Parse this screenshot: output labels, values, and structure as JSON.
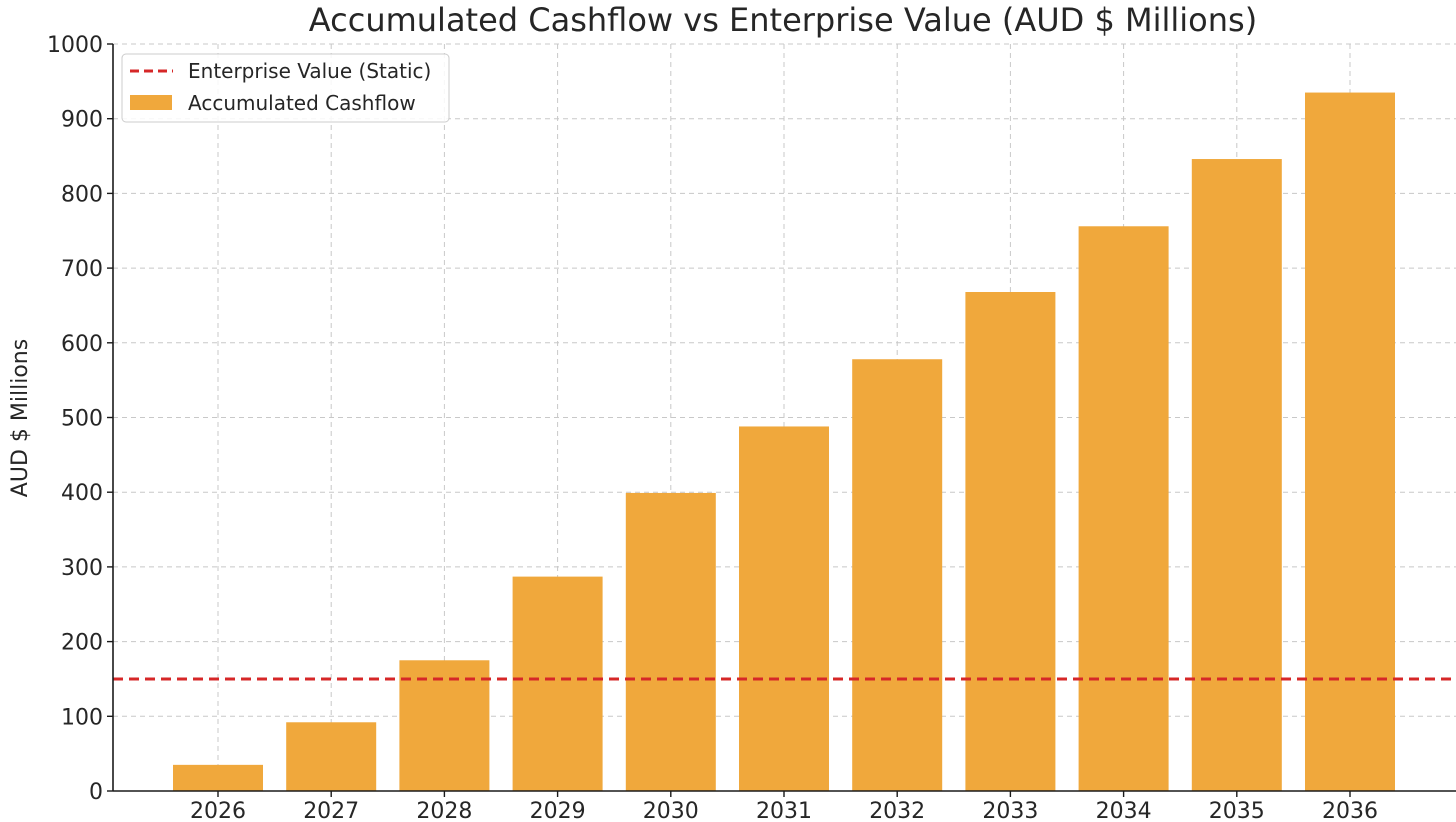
{
  "chart_data": {
    "type": "bar",
    "title": "Accumulated Cashflow vs Enterprise Value (AUD $ Millions)",
    "xlabel": "",
    "ylabel": "AUD $ Millions",
    "categories": [
      "2026",
      "2027",
      "2028",
      "2029",
      "2030",
      "2031",
      "2032",
      "2033",
      "2034",
      "2035",
      "2036"
    ],
    "series": [
      {
        "name": "Accumulated Cashflow",
        "kind": "bar",
        "color": "#f0a83c",
        "values": [
          35,
          92,
          175,
          287,
          399,
          488,
          578,
          668,
          756,
          846,
          935
        ]
      },
      {
        "name": "Enterprise Value (Static)",
        "kind": "hline",
        "color": "#d62728",
        "value": 150
      }
    ],
    "ylim": [
      0,
      1000
    ],
    "yticks": [
      0,
      100,
      200,
      300,
      400,
      500,
      600,
      700,
      800,
      900,
      1000
    ],
    "grid": true,
    "legend_position": "top-left"
  }
}
